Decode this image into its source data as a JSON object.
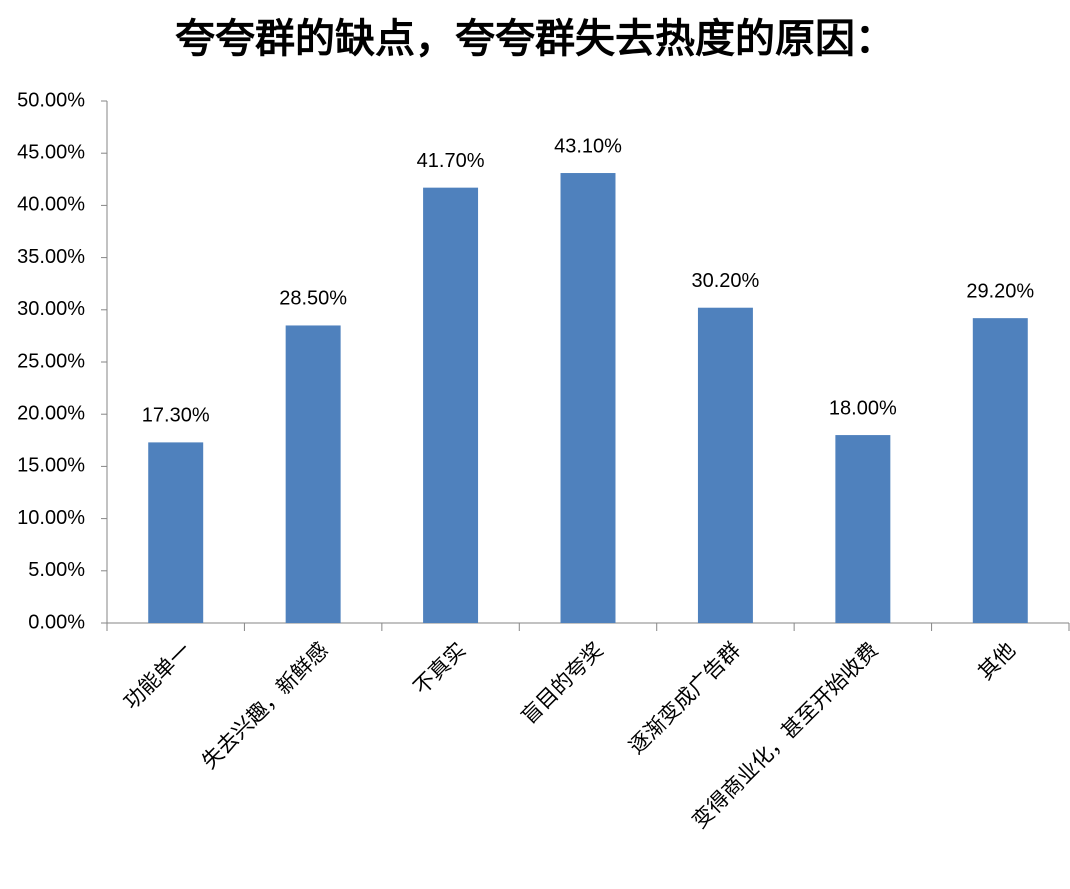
{
  "chart_data": {
    "type": "bar",
    "title": "夸夸群的缺点，夸夸群失去热度的原因：",
    "categories": [
      "功能单一",
      "失去兴趣，新鲜感",
      "不真实",
      "盲目的夸奖",
      "逐渐变成广告群",
      "变得商业化，甚至开始收费",
      "其他"
    ],
    "values": [
      17.3,
      28.5,
      41.7,
      43.1,
      30.2,
      18.0,
      29.2
    ],
    "value_labels": [
      "17.30%",
      "28.50%",
      "41.70%",
      "43.10%",
      "30.20%",
      "18.00%",
      "29.20%"
    ],
    "color": "#4f81bd",
    "ylim": [
      0,
      50
    ],
    "yticks": [
      {
        "value": 0,
        "label": "0.00%"
      },
      {
        "value": 5,
        "label": "5.00%"
      },
      {
        "value": 10,
        "label": "10.00%"
      },
      {
        "value": 15,
        "label": "15.00%"
      },
      {
        "value": 20,
        "label": "20.00%"
      },
      {
        "value": 25,
        "label": "25.00%"
      },
      {
        "value": 30,
        "label": "30.00%"
      },
      {
        "value": 35,
        "label": "35.00%"
      },
      {
        "value": 40,
        "label": "40.00%"
      },
      {
        "value": 45,
        "label": "45.00%"
      },
      {
        "value": 50,
        "label": "50.00%"
      }
    ],
    "grid": false
  }
}
